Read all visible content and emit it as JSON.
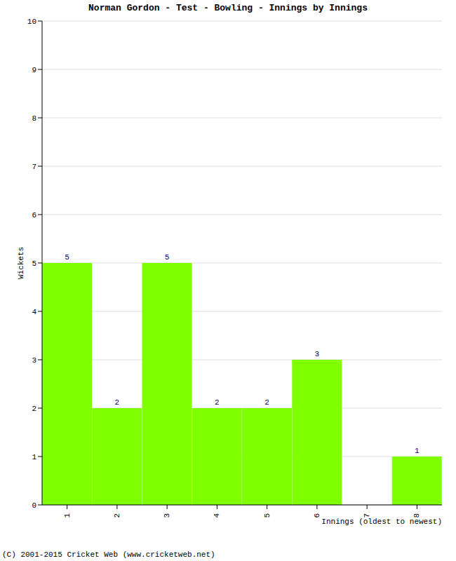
{
  "chart_data": {
    "type": "bar",
    "title": "Norman Gordon - Test - Bowling - Innings by Innings",
    "x_label": "Innings (oldest to newest)",
    "y_label": "Wickets",
    "categories": [
      "1",
      "2",
      "3",
      "4",
      "5",
      "6",
      "7",
      "8"
    ],
    "values": [
      5,
      2,
      5,
      2,
      2,
      3,
      0,
      1
    ],
    "color": "#7fff00",
    "ylim": [
      0,
      10
    ],
    "yticks": [
      0,
      1,
      2,
      3,
      4,
      5,
      6,
      7,
      8,
      9,
      10
    ],
    "grid": true,
    "data_labels": true,
    "annotations": [
      "(C) 2001-2015 Cricket Web (www.cricketweb.net)"
    ]
  }
}
